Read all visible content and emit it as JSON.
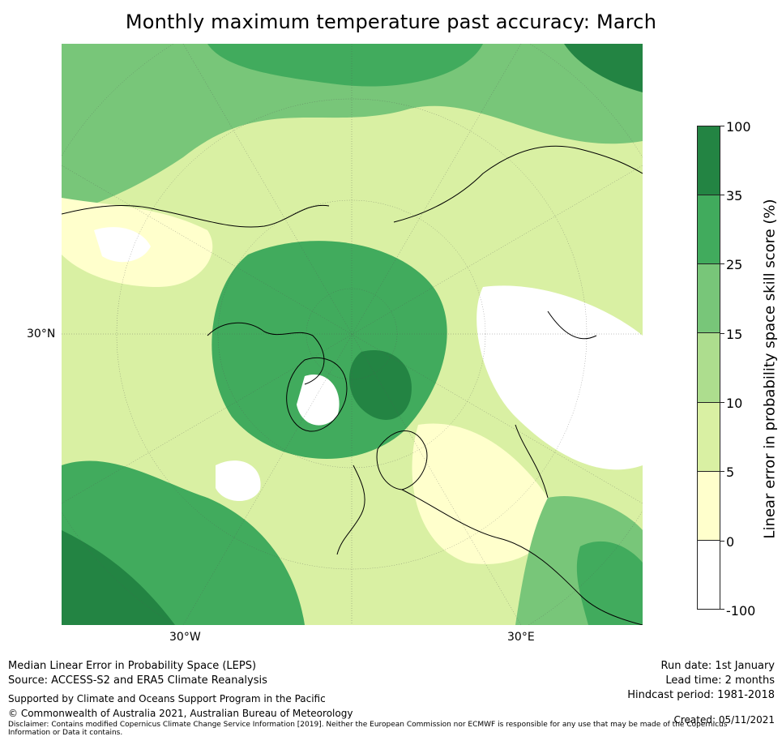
{
  "title": "Monthly maximum temperature past accuracy: March",
  "map": {
    "lat_labels": [
      "30°N"
    ],
    "lon_labels": [
      "30°W",
      "30°E"
    ]
  },
  "colorbar": {
    "label": "Linear error in probability space skill score (%)",
    "ticks": [
      "100",
      "35",
      "25",
      "15",
      "10",
      "5",
      "0",
      "-100"
    ],
    "segments": [
      {
        "range": "35 to 100",
        "color": "#238443"
      },
      {
        "range": "25 to 35",
        "color": "#41ab5d"
      },
      {
        "range": "15 to 25",
        "color": "#78c679"
      },
      {
        "range": "10 to 15",
        "color": "#addd8e"
      },
      {
        "range": "5 to 10",
        "color": "#d9f0a3"
      },
      {
        "range": "0 to 5",
        "color": "#ffffcc"
      },
      {
        "range": "-100 to 0",
        "color": "#ffffff"
      }
    ]
  },
  "footer": {
    "method": "Median Linear Error in Probability Space (LEPS)",
    "source": "Source: ACCESS-S2 and ERA5 Climate Reanalysis",
    "support": "Supported by Climate and Oceans Support Program in the Pacific",
    "copyright": "© Commonwealth of Australia 2021, Australian Bureau of Meteorology",
    "disclaimer_line1": "Disclaimer: Contains modified Copernicus Climate Change Service Information [2019]. Neither the European Commission nor ECMWF is responsible for any use that may be made of the Copernicus",
    "disclaimer_line2": "Information or Data it contains.",
    "run_date": "Run date: 1st January",
    "lead_time": "Lead time: 2 months",
    "hindcast": "Hindcast period: 1981-2018",
    "created": "Created: 05/11/2021"
  }
}
